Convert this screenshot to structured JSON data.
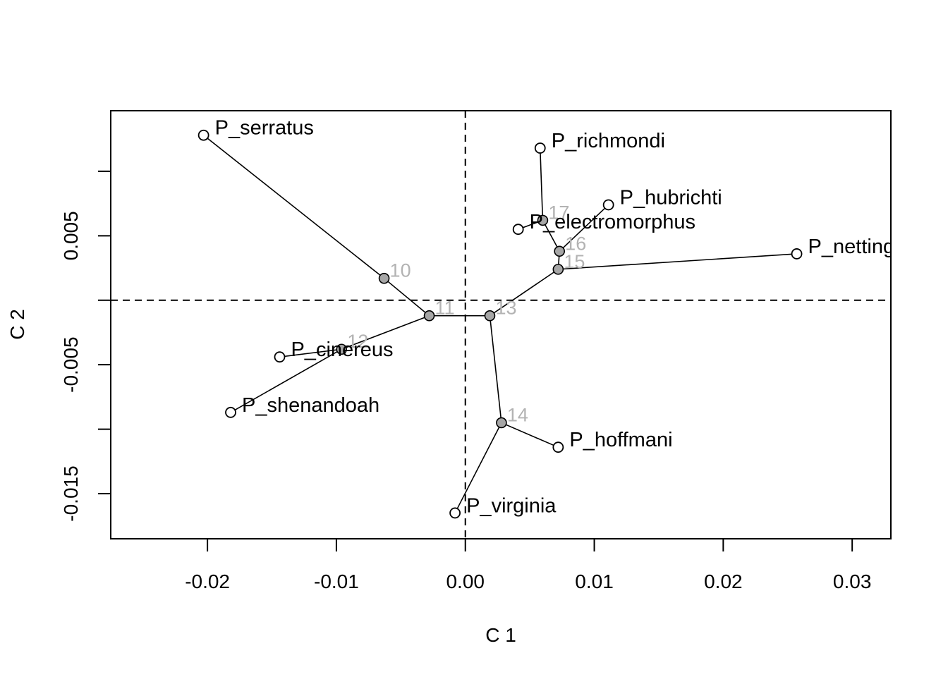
{
  "chart_data": {
    "type": "scatter",
    "title": "",
    "xlabel": "C 1",
    "ylabel": "C 2",
    "xlim": [
      -0.0275,
      0.033
    ],
    "ylim": [
      -0.0185,
      0.0147
    ],
    "x_ticks": [
      {
        "value": -0.02,
        "label": "-0.02"
      },
      {
        "value": -0.01,
        "label": "-0.01"
      },
      {
        "value": 0.0,
        "label": "0.00"
      },
      {
        "value": 0.01,
        "label": "0.01"
      },
      {
        "value": 0.02,
        "label": "0.02"
      },
      {
        "value": 0.03,
        "label": "0.03"
      }
    ],
    "y_ticks": [
      {
        "value": -0.015,
        "label": "-0.015"
      },
      {
        "value": -0.01,
        "label": ""
      },
      {
        "value": -0.005,
        "label": "-0.005"
      },
      {
        "value": 0.0,
        "label": ""
      },
      {
        "value": 0.005,
        "label": "0.005"
      },
      {
        "value": 0.01,
        "label": ""
      }
    ],
    "reference_lines": {
      "x": 0.0,
      "y": 0.0,
      "style": "dashed"
    },
    "tips": [
      {
        "id": "P_serratus",
        "label": "P_serratus",
        "x": -0.0203,
        "y": 0.0128
      },
      {
        "id": "P_richmondi",
        "label": "P_richmondi",
        "x": 0.0058,
        "y": 0.0118
      },
      {
        "id": "P_hubrichti",
        "label": "P_hubrichti",
        "x": 0.0111,
        "y": 0.0074
      },
      {
        "id": "P_electromorphus",
        "label": "P_electromorphus",
        "x": 0.0041,
        "y": 0.0055
      },
      {
        "id": "P_nettingi",
        "label": "P_nettingi",
        "x": 0.0257,
        "y": 0.0036
      },
      {
        "id": "P_cinereus",
        "label": "P_cinereus",
        "x": -0.0144,
        "y": -0.0044
      },
      {
        "id": "P_shenandoah",
        "label": "P_shenandoah",
        "x": -0.0182,
        "y": -0.0087
      },
      {
        "id": "P_hoffmani",
        "label": "P_hoffmani",
        "x": 0.0072,
        "y": -0.0114
      },
      {
        "id": "P_virginia",
        "label": "P_virginia",
        "x": -0.0008,
        "y": -0.0165
      }
    ],
    "nodes": [
      {
        "id": "10",
        "label": "10",
        "x": -0.0063,
        "y": 0.0017
      },
      {
        "id": "11",
        "label": "11",
        "x": -0.0028,
        "y": -0.0012
      },
      {
        "id": "12",
        "label": "12",
        "x": -0.0096,
        "y": -0.0038
      },
      {
        "id": "13",
        "label": "13",
        "x": 0.0019,
        "y": -0.0012
      },
      {
        "id": "14",
        "label": "14",
        "x": 0.0028,
        "y": -0.0095
      },
      {
        "id": "15",
        "label": "15",
        "x": 0.0072,
        "y": 0.0024
      },
      {
        "id": "16",
        "label": "16",
        "x": 0.0073,
        "y": 0.0038
      },
      {
        "id": "17",
        "label": "17",
        "x": 0.006,
        "y": 0.0062
      }
    ],
    "edges": [
      [
        "10",
        "P_serratus"
      ],
      [
        "10",
        "11"
      ],
      [
        "11",
        "12"
      ],
      [
        "11",
        "13"
      ],
      [
        "12",
        "P_cinereus"
      ],
      [
        "12",
        "P_shenandoah"
      ],
      [
        "13",
        "14"
      ],
      [
        "13",
        "15"
      ],
      [
        "14",
        "P_hoffmani"
      ],
      [
        "14",
        "P_virginia"
      ],
      [
        "15",
        "P_nettingi"
      ],
      [
        "15",
        "16"
      ],
      [
        "16",
        "P_hubrichti"
      ],
      [
        "16",
        "17"
      ],
      [
        "17",
        "P_richmondi"
      ],
      [
        "17",
        "P_electromorphus"
      ]
    ],
    "colors": {
      "tip_fill": "#ffffff",
      "node_fill": "#a6a6a6",
      "node_label": "#b3b3b3",
      "stroke": "#000000"
    }
  }
}
